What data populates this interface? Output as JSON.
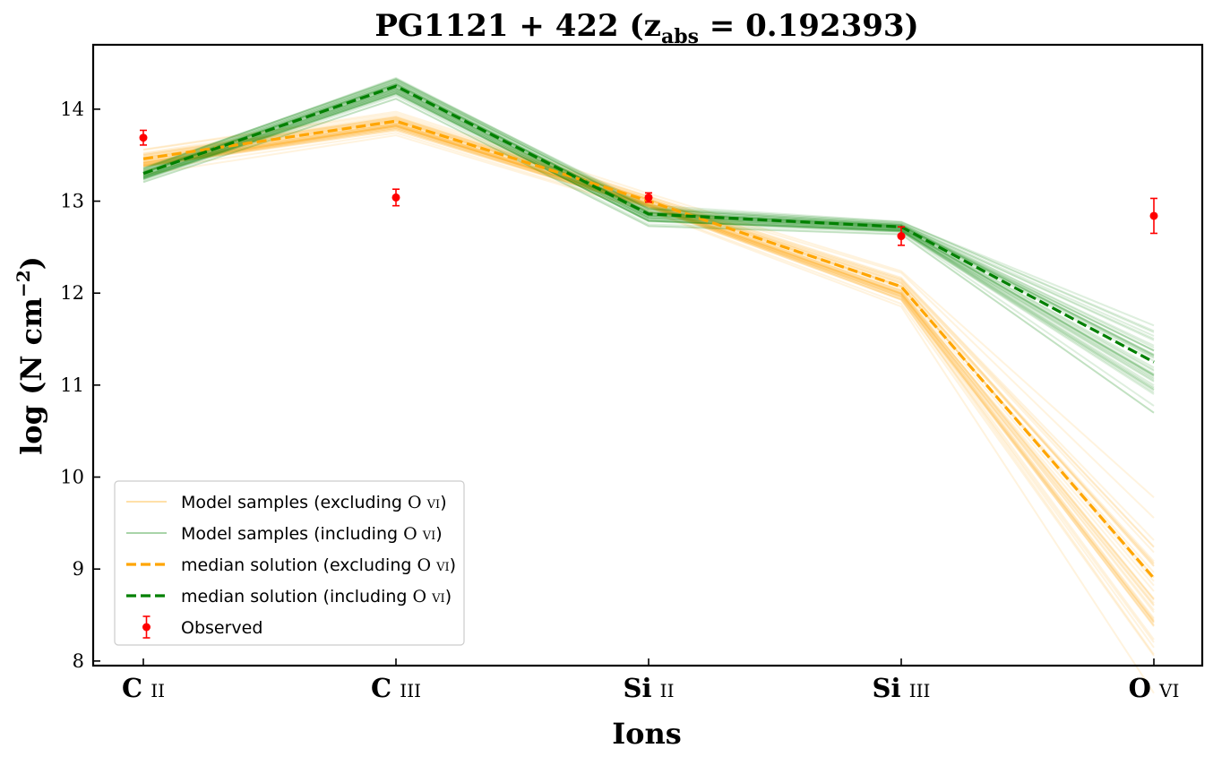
{
  "chart_data": {
    "type": "line",
    "title_main": "PG1121 + 422 (z",
    "title_sub": "abs",
    "title_end": " = 0.192393)",
    "xlabel": "Ions",
    "ylabel_main": "log (N cm",
    "ylabel_sup": "−2",
    "ylabel_end": ")",
    "categories": [
      "C II",
      "C III",
      "Si II",
      "Si III",
      "O VI"
    ],
    "ylim": [
      7.95,
      14.7
    ],
    "yticks": [
      "8",
      "9",
      "10",
      "11",
      "12",
      "13",
      "14"
    ],
    "series": [
      {
        "name": "median solution (excluding O VI)",
        "style": "dashed",
        "color": "#ffa500",
        "values": [
          13.46,
          13.87,
          13.0,
          12.07,
          8.9
        ]
      },
      {
        "name": "median solution (including O VI)",
        "style": "dashed",
        "color": "#008000",
        "values": [
          13.3,
          14.25,
          12.86,
          12.72,
          11.25
        ]
      }
    ],
    "model_samples": [
      {
        "name": "Model samples (excluding O VI)",
        "color": "#ffa500",
        "center": [
          13.46,
          13.87,
          13.0,
          12.07,
          8.9
        ],
        "spread": [
          0.08,
          0.08,
          0.06,
          0.12,
          0.6
        ]
      },
      {
        "name": "Model samples (including O VI)",
        "color": "#008000",
        "center": [
          13.3,
          14.25,
          12.86,
          12.72,
          11.25
        ],
        "spread": [
          0.05,
          0.07,
          0.07,
          0.04,
          0.3
        ]
      }
    ],
    "observed": {
      "name": "Observed",
      "color": "#ff0000",
      "values": [
        13.69,
        13.04,
        13.04,
        12.62,
        12.84
      ],
      "errors": [
        0.08,
        0.09,
        0.05,
        0.1,
        0.19
      ]
    },
    "legend": {
      "position": "lower-left",
      "entries": [
        {
          "label": "Model samples (excluding O VI)",
          "color": "#ffa500",
          "style": "thin"
        },
        {
          "label": "Model samples (including O VI)",
          "color": "#008000",
          "style": "thin"
        },
        {
          "label": "median solution (excluding O VI)",
          "color": "#ffa500",
          "style": "dashed"
        },
        {
          "label": "median solution (including O VI)",
          "color": "#008000",
          "style": "dashed"
        },
        {
          "label": "Observed",
          "color": "#ff0000",
          "style": "errorbar"
        }
      ]
    },
    "grid": false
  }
}
